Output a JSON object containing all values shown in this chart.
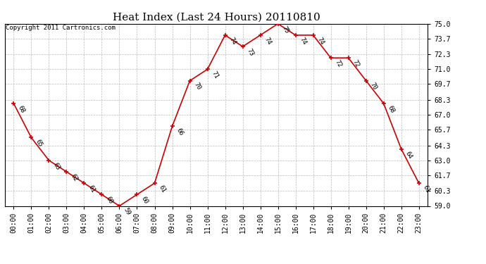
{
  "title": "Heat Index (Last 24 Hours) 20110810",
  "copyright": "Copyright 2011 Cartronics.com",
  "hours": [
    "00:00",
    "01:00",
    "02:00",
    "03:00",
    "04:00",
    "05:00",
    "06:00",
    "07:00",
    "08:00",
    "09:00",
    "10:00",
    "11:00",
    "12:00",
    "13:00",
    "14:00",
    "15:00",
    "16:00",
    "17:00",
    "18:00",
    "19:00",
    "20:00",
    "21:00",
    "22:00",
    "23:00"
  ],
  "values": [
    68,
    65,
    63,
    62,
    61,
    60,
    59,
    60,
    61,
    66,
    70,
    71,
    74,
    73,
    74,
    75,
    74,
    74,
    72,
    72,
    70,
    68,
    64,
    61
  ],
  "line_color": "#cc0000",
  "marker_color": "#cc0000",
  "bg_color": "#ffffff",
  "plot_bg_color": "#ffffff",
  "grid_color": "#bbbbbb",
  "title_fontsize": 11,
  "label_fontsize": 6.5,
  "tick_fontsize": 7,
  "copyright_fontsize": 6.5,
  "ylim": [
    59.0,
    75.0
  ],
  "yticks": [
    59.0,
    60.3,
    61.7,
    63.0,
    64.3,
    65.7,
    67.0,
    68.3,
    69.7,
    71.0,
    72.3,
    73.7,
    75.0
  ]
}
